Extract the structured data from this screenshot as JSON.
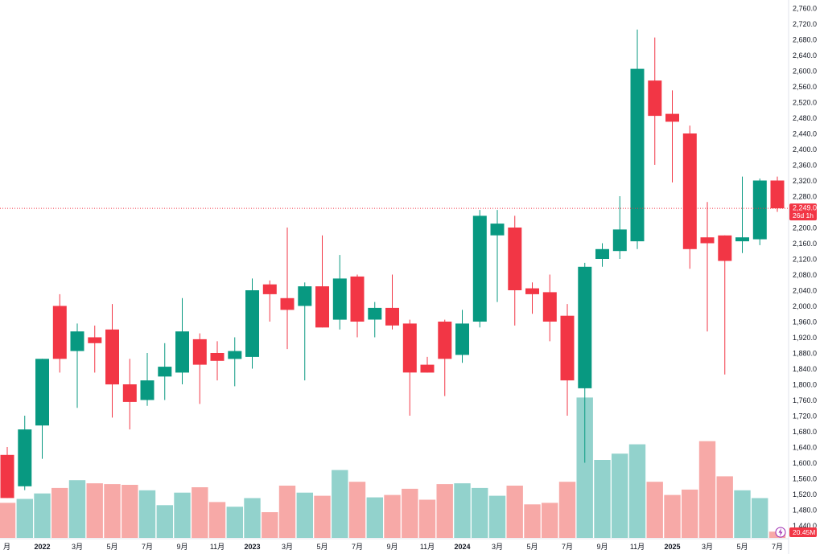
{
  "chart_data": {
    "type": "candlestick",
    "colors": {
      "up": "#089981",
      "down": "#f23645",
      "up_volume": "#92d2cc",
      "down_volume": "#f7a9a7"
    },
    "y_axis": {
      "ticks": [
        1440,
        1480,
        1520,
        1560,
        1600,
        1640,
        1680,
        1720,
        1760,
        1800,
        1840,
        1880,
        1920,
        1960,
        2000,
        2040,
        2080,
        2120,
        2160,
        2200,
        2240,
        2280,
        2320,
        2360,
        2400,
        2440,
        2480,
        2520,
        2560,
        2600,
        2640,
        2680,
        2720,
        2760
      ]
    },
    "x_axis_labels": [
      {
        "i": 0,
        "text": "月"
      },
      {
        "i": 2,
        "text": "2022"
      },
      {
        "i": 4,
        "text": "3月"
      },
      {
        "i": 6,
        "text": "5月"
      },
      {
        "i": 8,
        "text": "7月"
      },
      {
        "i": 10,
        "text": "9月"
      },
      {
        "i": 12,
        "text": "11月"
      },
      {
        "i": 14,
        "text": "2023"
      },
      {
        "i": 16,
        "text": "3月"
      },
      {
        "i": 18,
        "text": "5月"
      },
      {
        "i": 20,
        "text": "7月"
      },
      {
        "i": 22,
        "text": "9月"
      },
      {
        "i": 24,
        "text": "11月"
      },
      {
        "i": 26,
        "text": "2024"
      },
      {
        "i": 28,
        "text": "3月"
      },
      {
        "i": 30,
        "text": "5月"
      },
      {
        "i": 32,
        "text": "7月"
      },
      {
        "i": 34,
        "text": "9月"
      },
      {
        "i": 36,
        "text": "11月"
      },
      {
        "i": 38,
        "text": "2025"
      },
      {
        "i": 40,
        "text": "3月"
      },
      {
        "i": 42,
        "text": "5月"
      },
      {
        "i": 44,
        "text": "7月"
      }
    ],
    "candles": [
      {
        "o": 1620,
        "h": 1640,
        "l": 1510,
        "c": 1510,
        "v": 0.45
      },
      {
        "o": 1540,
        "h": 1720,
        "l": 1530,
        "c": 1685,
        "v": 0.5
      },
      {
        "o": 1695,
        "h": 1865,
        "l": 1610,
        "c": 1865,
        "v": 0.57
      },
      {
        "o": 2000,
        "h": 2030,
        "l": 1830,
        "c": 1865,
        "v": 0.64
      },
      {
        "o": 1885,
        "h": 1955,
        "l": 1740,
        "c": 1935,
        "v": 0.74
      },
      {
        "o": 1920,
        "h": 1950,
        "l": 1830,
        "c": 1905,
        "v": 0.7
      },
      {
        "o": 1940,
        "h": 2005,
        "l": 1715,
        "c": 1800,
        "v": 0.69
      },
      {
        "o": 1800,
        "h": 1865,
        "l": 1685,
        "c": 1755,
        "v": 0.68
      },
      {
        "o": 1760,
        "h": 1880,
        "l": 1745,
        "c": 1810,
        "v": 0.61
      },
      {
        "o": 1820,
        "h": 1905,
        "l": 1760,
        "c": 1845,
        "v": 0.42
      },
      {
        "o": 1830,
        "h": 2020,
        "l": 1800,
        "c": 1935,
        "v": 0.58
      },
      {
        "o": 1915,
        "h": 1930,
        "l": 1750,
        "c": 1850,
        "v": 0.65
      },
      {
        "o": 1880,
        "h": 1910,
        "l": 1810,
        "c": 1860,
        "v": 0.46
      },
      {
        "o": 1865,
        "h": 1920,
        "l": 1795,
        "c": 1885,
        "v": 0.4
      },
      {
        "o": 1870,
        "h": 2070,
        "l": 1840,
        "c": 2040,
        "v": 0.51
      },
      {
        "o": 2055,
        "h": 2065,
        "l": 1960,
        "c": 2030,
        "v": 0.33
      },
      {
        "o": 2020,
        "h": 2200,
        "l": 1890,
        "c": 1990,
        "v": 0.67
      },
      {
        "o": 2000,
        "h": 2060,
        "l": 1810,
        "c": 2050,
        "v": 0.58
      },
      {
        "o": 2050,
        "h": 2180,
        "l": 1945,
        "c": 1945,
        "v": 0.54
      },
      {
        "o": 1965,
        "h": 2130,
        "l": 1940,
        "c": 2070,
        "v": 0.87
      },
      {
        "o": 2075,
        "h": 2080,
        "l": 1920,
        "c": 1960,
        "v": 0.72
      },
      {
        "o": 1965,
        "h": 2010,
        "l": 1920,
        "c": 1995,
        "v": 0.52
      },
      {
        "o": 1995,
        "h": 2080,
        "l": 1940,
        "c": 1950,
        "v": 0.55
      },
      {
        "o": 1955,
        "h": 1965,
        "l": 1720,
        "c": 1830,
        "v": 0.63
      },
      {
        "o": 1850,
        "h": 1870,
        "l": 1830,
        "c": 1830,
        "v": 0.49
      },
      {
        "o": 1960,
        "h": 1965,
        "l": 1770,
        "c": 1865,
        "v": 0.69
      },
      {
        "o": 1875,
        "h": 1990,
        "l": 1855,
        "c": 1955,
        "v": 0.7
      },
      {
        "o": 1960,
        "h": 2245,
        "l": 1945,
        "c": 2230,
        "v": 0.64
      },
      {
        "o": 2180,
        "h": 2245,
        "l": 2010,
        "c": 2210,
        "v": 0.54
      },
      {
        "o": 2200,
        "h": 2230,
        "l": 1950,
        "c": 2040,
        "v": 0.67
      },
      {
        "o": 2045,
        "h": 2060,
        "l": 1980,
        "c": 2030,
        "v": 0.43
      },
      {
        "o": 2035,
        "h": 2080,
        "l": 1910,
        "c": 1960,
        "v": 0.45
      },
      {
        "o": 1975,
        "h": 2005,
        "l": 1720,
        "c": 1810,
        "v": 0.72
      },
      {
        "o": 1790,
        "h": 2110,
        "l": 1600,
        "c": 2100,
        "v": 1.8
      },
      {
        "o": 2120,
        "h": 2160,
        "l": 2100,
        "c": 2145,
        "v": 1.0
      },
      {
        "o": 2140,
        "h": 2280,
        "l": 2120,
        "c": 2195,
        "v": 1.08
      },
      {
        "o": 2165,
        "h": 2705,
        "l": 2145,
        "c": 2605,
        "v": 1.2
      },
      {
        "o": 2575,
        "h": 2685,
        "l": 2360,
        "c": 2485,
        "v": 0.72
      },
      {
        "o": 2490,
        "h": 2550,
        "l": 2315,
        "c": 2470,
        "v": 0.55
      },
      {
        "o": 2440,
        "h": 2460,
        "l": 2095,
        "c": 2145,
        "v": 0.62
      },
      {
        "o": 2175,
        "h": 2265,
        "l": 1935,
        "c": 2160,
        "v": 1.24
      },
      {
        "o": 2180,
        "h": 2180,
        "l": 1825,
        "c": 2115,
        "v": 0.79
      },
      {
        "o": 2165,
        "h": 2330,
        "l": 2135,
        "c": 2175,
        "v": 0.61
      },
      {
        "o": 2170,
        "h": 2325,
        "l": 2155,
        "c": 2320,
        "v": 0.51
      },
      {
        "o": 2320,
        "h": 2330,
        "l": 2240,
        "c": 2249,
        "v": 0.08
      }
    ],
    "last_price_label": "2,249.0",
    "countdown_label": "26d 1h",
    "volume_label": "20.45M"
  }
}
